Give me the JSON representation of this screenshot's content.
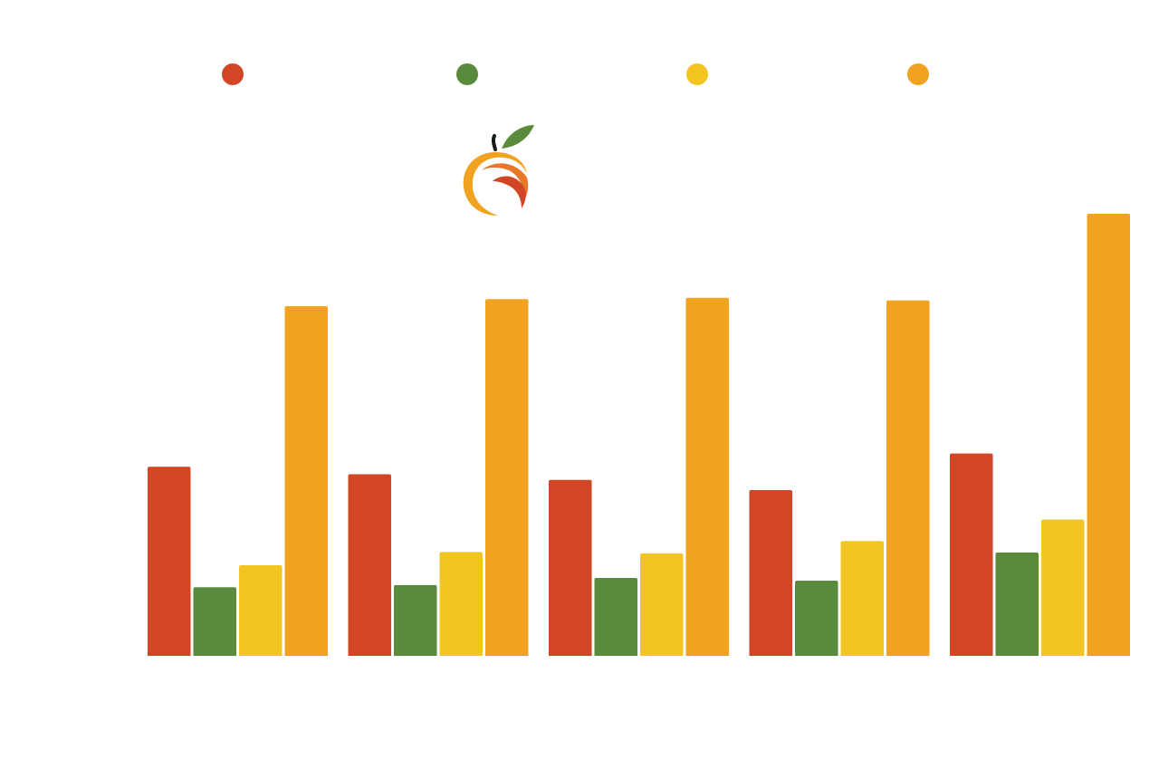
{
  "colors": {
    "background": "#ffffff",
    "red": "#D24625",
    "green": "#5A8A3C",
    "yellow": "#F2C522",
    "orange": "#F1A220"
  },
  "logo": {
    "icon": "peach-icon",
    "leaf_color": "#5A8A3C",
    "stem_color": "#1a1a1a",
    "body_color": "#F1A220",
    "accent_color": "#D24625"
  },
  "chart_data": {
    "type": "bar",
    "title": "",
    "xlabel": "",
    "ylabel": "",
    "grid": false,
    "legend_placement": "top",
    "ylim": [
      0,
      100
    ],
    "categories": [
      "",
      "",
      "",
      "",
      ""
    ],
    "series": [
      {
        "color": "#D24625",
        "values": [
          43,
          41.3,
          40,
          37.7,
          46
        ]
      },
      {
        "color": "#5A8A3C",
        "values": [
          15.6,
          16.1,
          17.7,
          17.1,
          23.5
        ]
      },
      {
        "color": "#F2C522",
        "values": [
          20.6,
          23.6,
          23.3,
          26.1,
          31
        ]
      },
      {
        "color": "#F1A220",
        "values": [
          79.5,
          81.1,
          81.4,
          80.8,
          100.5
        ]
      }
    ]
  }
}
